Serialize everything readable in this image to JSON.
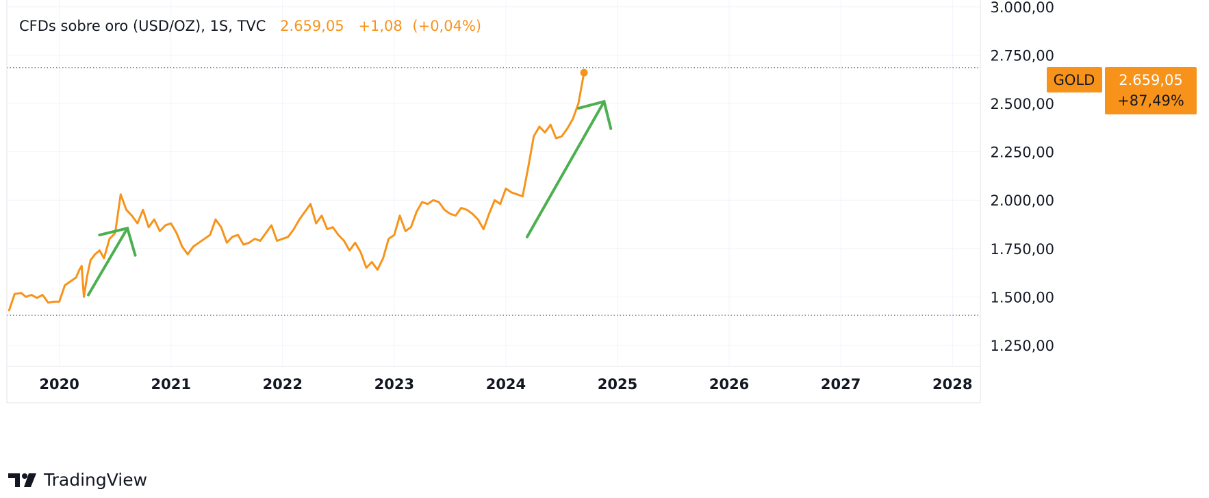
{
  "header": {
    "symbol_line": "CFDs sobre oro (USD/OZ), 1S, TVC",
    "last_price": "2.659,05",
    "change": "+1,08",
    "change_pct": "(+0,04%)"
  },
  "price_label": {
    "ticker": "GOLD",
    "price": "2.659,05",
    "change_pct": "+87,49%"
  },
  "branding": {
    "logo_icon": "tradingview-logo-icon",
    "text": "TradingView"
  },
  "colors": {
    "series": "#f7931a",
    "arrows": "#4caf50",
    "grid": "#f0f3fa",
    "axis_text": "#131722",
    "label_bg": "#f7931a"
  },
  "chart_data": {
    "type": "line",
    "title": "CFDs sobre oro (USD/OZ), 1S, TVC",
    "xlabel": "",
    "ylabel": "",
    "xlim": [
      2019.53,
      2028.25
    ],
    "ylim": [
      1140,
      3035
    ],
    "y_ticks": [
      1250,
      1500,
      1750,
      2000,
      2250,
      2500,
      2750,
      3000
    ],
    "y_tick_labels": [
      "1.250,00",
      "1.500,00",
      "1.750,00",
      "2.000,00",
      "2.250,00",
      "2.500,00",
      "2.750,00",
      "3.000,00"
    ],
    "x_ticks": [
      2020,
      2021,
      2022,
      2023,
      2024,
      2025,
      2026,
      2027,
      2028
    ],
    "x_tick_labels": [
      "2020",
      "2021",
      "2022",
      "2023",
      "2024",
      "2025",
      "2026",
      "2027",
      "2028"
    ],
    "grid": true,
    "reference_lines": [
      {
        "y": 2685,
        "style": "dotted"
      },
      {
        "y": 1405,
        "style": "dotted"
      }
    ],
    "series": [
      {
        "color": "#f7931a",
        "x": [
          2019.55,
          2019.6,
          2019.66,
          2019.7,
          2019.75,
          2019.8,
          2019.85,
          2019.9,
          2019.95,
          2020.0,
          2020.05,
          2020.1,
          2020.15,
          2020.18,
          2020.2,
          2020.22,
          2020.25,
          2020.28,
          2020.32,
          2020.36,
          2020.4,
          2020.45,
          2020.5,
          2020.55,
          2020.6,
          2020.65,
          2020.7,
          2020.75,
          2020.8,
          2020.85,
          2020.9,
          2020.95,
          2021.0,
          2021.05,
          2021.1,
          2021.15,
          2021.2,
          2021.25,
          2021.3,
          2021.35,
          2021.4,
          2021.45,
          2021.5,
          2021.55,
          2021.6,
          2021.65,
          2021.7,
          2021.75,
          2021.8,
          2021.85,
          2021.9,
          2021.95,
          2022.0,
          2022.05,
          2022.1,
          2022.15,
          2022.2,
          2022.25,
          2022.3,
          2022.35,
          2022.4,
          2022.45,
          2022.5,
          2022.55,
          2022.6,
          2022.65,
          2022.7,
          2022.75,
          2022.8,
          2022.85,
          2022.9,
          2022.95,
          2023.0,
          2023.05,
          2023.1,
          2023.15,
          2023.2,
          2023.25,
          2023.3,
          2023.35,
          2023.4,
          2023.45,
          2023.5,
          2023.55,
          2023.6,
          2023.65,
          2023.7,
          2023.75,
          2023.8,
          2023.85,
          2023.9,
          2023.95,
          2024.0,
          2024.05,
          2024.1,
          2024.15,
          2024.2,
          2024.25,
          2024.3,
          2024.35,
          2024.4,
          2024.45,
          2024.5,
          2024.55,
          2024.6,
          2024.65,
          2024.7
        ],
        "values": [
          1430,
          1515,
          1520,
          1500,
          1510,
          1495,
          1510,
          1470,
          1475,
          1475,
          1560,
          1580,
          1600,
          1640,
          1660,
          1500,
          1610,
          1690,
          1720,
          1740,
          1700,
          1800,
          1830,
          2030,
          1950,
          1920,
          1880,
          1950,
          1860,
          1900,
          1840,
          1870,
          1880,
          1830,
          1760,
          1720,
          1760,
          1780,
          1800,
          1820,
          1900,
          1860,
          1780,
          1810,
          1820,
          1770,
          1780,
          1800,
          1790,
          1830,
          1870,
          1790,
          1800,
          1810,
          1850,
          1900,
          1940,
          1980,
          1880,
          1920,
          1850,
          1860,
          1820,
          1790,
          1740,
          1780,
          1730,
          1650,
          1680,
          1640,
          1700,
          1800,
          1820,
          1920,
          1840,
          1860,
          1940,
          1990,
          1980,
          2000,
          1990,
          1950,
          1930,
          1920,
          1960,
          1950,
          1930,
          1900,
          1850,
          1930,
          2000,
          1980,
          2060,
          2040,
          2030,
          2020,
          2170,
          2330,
          2380,
          2350,
          2390,
          2320,
          2330,
          2370,
          2420,
          2500,
          2659
        ]
      }
    ],
    "annotations": [
      {
        "type": "arrow",
        "color": "#4caf50",
        "from": [
          2020.26,
          1510
        ],
        "to": [
          2020.61,
          1855
        ],
        "head_end_a": [
          2020.36,
          1820
        ],
        "head_end_b": [
          2020.68,
          1715
        ]
      },
      {
        "type": "arrow",
        "color": "#4caf50",
        "from": [
          2024.19,
          1810
        ],
        "to": [
          2024.88,
          2510
        ],
        "head_end_a": [
          2024.65,
          2475
        ],
        "head_end_b": [
          2024.94,
          2370
        ]
      }
    ],
    "last_point_marker": {
      "x": 2024.7,
      "y": 2659
    }
  }
}
